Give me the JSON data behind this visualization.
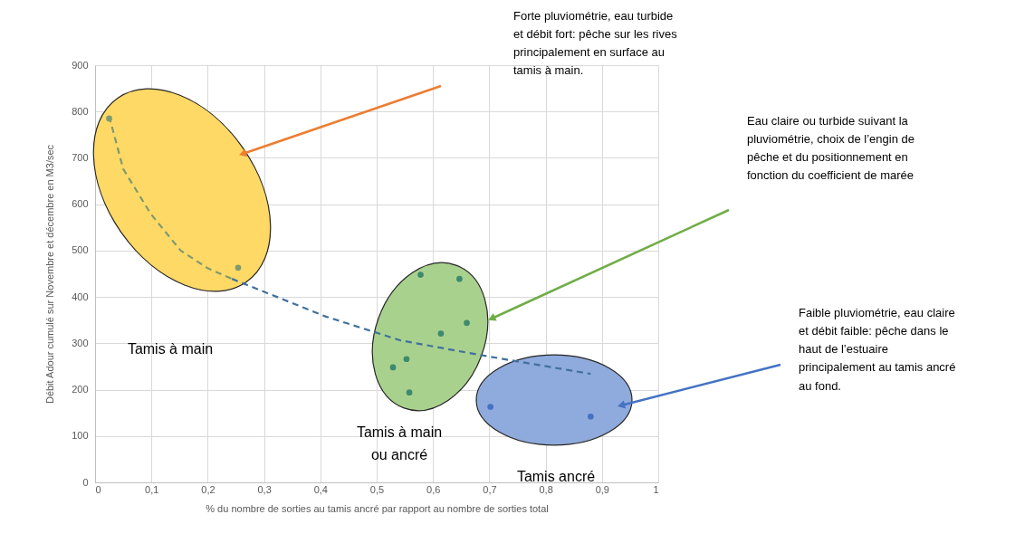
{
  "chart_data": {
    "type": "scatter",
    "xlabel": "% du nombre de sorties  au tamis ancré par rapport  au nombre de sorties total",
    "ylabel": "Débit Adour cumulé sur Novembre et décembre en M3/sec",
    "xlim": [
      0,
      1
    ],
    "ylim": [
      0,
      900
    ],
    "xticks": [
      {
        "value": 0,
        "label": "0"
      },
      {
        "value": 0.1,
        "label": "0,1"
      },
      {
        "value": 0.2,
        "label": "0,2"
      },
      {
        "value": 0.3,
        "label": "0,3"
      },
      {
        "value": 0.4,
        "label": "0,4"
      },
      {
        "value": 0.5,
        "label": "0,5"
      },
      {
        "value": 0.6,
        "label": "0,6"
      },
      {
        "value": 0.7,
        "label": "0,7"
      },
      {
        "value": 0.8,
        "label": "0,8"
      },
      {
        "value": 0.9,
        "label": "0,9"
      },
      {
        "value": 1,
        "label": "1"
      }
    ],
    "yticks": [
      0,
      100,
      200,
      300,
      400,
      500,
      600,
      700,
      800,
      900
    ],
    "grid": true,
    "marker": "circle",
    "series": [
      {
        "type": "line",
        "marker": "none",
        "line_style": "dashed",
        "color": "#7f9a6f",
        "x": [
          0.025,
          0.05,
          0.099,
          0.152,
          0.2,
          0.243
        ],
        "values": [
          790,
          676,
          579,
          500,
          462,
          439
        ]
      },
      {
        "type": "line",
        "marker": "none",
        "line_style": "dashed",
        "color": "#41719c",
        "x": [
          0.243,
          0.409,
          0.543,
          0.692,
          0.88
        ],
        "values": [
          439,
          358,
          306,
          273,
          234
        ]
      },
      {
        "type": "scatter",
        "color": "#7f9a6f",
        "x": [
          0.025,
          0.254
        ],
        "values": [
          785,
          463
        ]
      },
      {
        "type": "scatter",
        "color": "#3e8a6e",
        "x": [
          0.578,
          0.647,
          0.66,
          0.614,
          0.553,
          0.529,
          0.558
        ],
        "values": [
          448,
          439,
          344,
          321,
          266,
          248,
          194
        ]
      },
      {
        "type": "scatter",
        "color": "#4472c4",
        "x": [
          0.702,
          0.88
        ],
        "values": [
          163,
          142
        ]
      }
    ],
    "annotations": [
      "Forte pluviométrie, eau turbide\net débit fort: pêche sur les rives\nprincipalement en surface au\ntamis à main.",
      "Eau claire ou turbide  suivant la\npluviométrie,  choix de l’engin de\npêche et du positionnement  en\nfonction du coefficient de marée",
      "Faible pluviométrie, eau claire\net débit faible: pêche dans le\nhaut de l’estuaire\nprincipalement au tamis ancré\nau fond.",
      "Tamis à main",
      "Tamis à main\nou ancré",
      "Tamis ancré"
    ]
  }
}
